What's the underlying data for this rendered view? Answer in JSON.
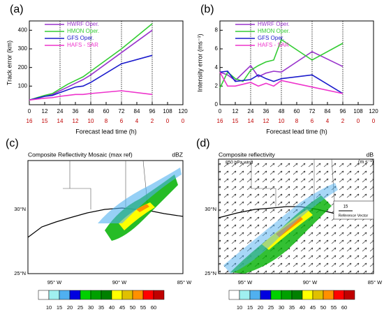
{
  "chart_data": [
    {
      "type": "line",
      "panel": "(a)",
      "ylabel": "Track error (km)",
      "xlabel": "Forecast lead time (h)",
      "x": [
        0,
        6,
        12,
        18,
        24,
        30,
        36,
        42,
        48,
        72,
        96
      ],
      "series": [
        {
          "name": "HWRF Oper.",
          "color": "#9933cc",
          "values": [
            25,
            35,
            45,
            55,
            75,
            95,
            115,
            135,
            160,
            280,
            400
          ]
        },
        {
          "name": "HMON Oper.",
          "color": "#33cc33",
          "values": [
            25,
            38,
            50,
            60,
            85,
            110,
            130,
            150,
            180,
            300,
            435
          ]
        },
        {
          "name": "GFS Oper.",
          "color": "#1a1acc",
          "values": [
            25,
            35,
            45,
            50,
            65,
            80,
            95,
            100,
            120,
            220,
            265
          ]
        },
        {
          "name": "HAFS - SAR",
          "color": "#ee33cc",
          "values": [
            25,
            30,
            35,
            38,
            45,
            50,
            55,
            55,
            60,
            75,
            55
          ]
        }
      ],
      "xlim": [
        0,
        120
      ],
      "xticks": [
        0,
        12,
        24,
        36,
        48,
        60,
        72,
        84,
        96,
        108,
        120
      ],
      "sample_counts": [
        16,
        15,
        14,
        12,
        10,
        8,
        6,
        4,
        2,
        0,
        0
      ],
      "ylim": [
        0,
        450
      ],
      "yticks": [
        100,
        200,
        300,
        400
      ],
      "vlines": [
        24,
        48,
        72,
        96
      ]
    },
    {
      "type": "line",
      "panel": "(b)",
      "ylabel": "Intensity error (ms⁻¹)",
      "xlabel": "Forecast lead time (h)",
      "x": [
        0,
        6,
        12,
        18,
        24,
        30,
        36,
        42,
        48,
        72,
        96
      ],
      "series": [
        {
          "name": "HWRF Oper.",
          "color": "#9933cc",
          "values": [
            3.5,
            3.2,
            2.6,
            3.4,
            4.2,
            3,
            3.4,
            3.6,
            3.5,
            5.7,
            4.1
          ]
        },
        {
          "name": "HMON Oper.",
          "color": "#33cc33",
          "values": [
            1.8,
            3.5,
            2.8,
            2.5,
            3.7,
            4.2,
            4.6,
            4.8,
            7,
            4.8,
            6.6
          ]
        },
        {
          "name": "GFS Oper.",
          "color": "#1a1acc",
          "values": [
            3.5,
            3.6,
            2.5,
            2.6,
            2.7,
            3.2,
            2.8,
            2.5,
            2.8,
            3.2,
            1.2
          ]
        },
        {
          "name": "HAFS - SAR",
          "color": "#ee33cc",
          "values": [
            3.5,
            2,
            2,
            2.2,
            2.4,
            2,
            2.3,
            2,
            2.6,
            1.9,
            1.2
          ]
        }
      ],
      "xlim": [
        0,
        120
      ],
      "xticks": [
        0,
        12,
        24,
        36,
        48,
        60,
        72,
        84,
        96,
        108,
        120
      ],
      "sample_counts": [
        16,
        15,
        14,
        12,
        10,
        8,
        6,
        4,
        2,
        0,
        0
      ],
      "ylim": [
        0,
        9
      ],
      "yticks": [
        0,
        2,
        4,
        6,
        8
      ],
      "vlines": [
        24,
        48,
        72,
        96
      ]
    }
  ],
  "maps": [
    {
      "panel": "(c)",
      "title": "Composite Reflectivity Mosaic (max ref)",
      "unit": "dBZ",
      "lat_labels": [
        "30°N",
        "25°N"
      ],
      "lon_labels": [
        "95° W",
        "90° W",
        "85° W"
      ]
    },
    {
      "panel": "(d)",
      "title": "Composite reflectivity",
      "unit": "dB",
      "unit2": "(m s⁻¹)",
      "subtitle": "850 hPa wind",
      "ref_value": "15",
      "ref_label": "Reference Vector",
      "lat_labels": [
        "30°N",
        "25°N"
      ],
      "lon_labels": [
        "95° W",
        "90° W",
        "85° W"
      ]
    }
  ],
  "colorbar": {
    "labels": [
      "10",
      "15",
      "20",
      "25",
      "30",
      "35",
      "40",
      "45",
      "50",
      "55",
      "60"
    ],
    "colors": [
      "#ffffff",
      "#a0f0f0",
      "#50b0f0",
      "#0000e0",
      "#00d000",
      "#00a000",
      "#008000",
      "#ffff00",
      "#e0c000",
      "#ff9000",
      "#ff0000",
      "#c00000"
    ]
  }
}
